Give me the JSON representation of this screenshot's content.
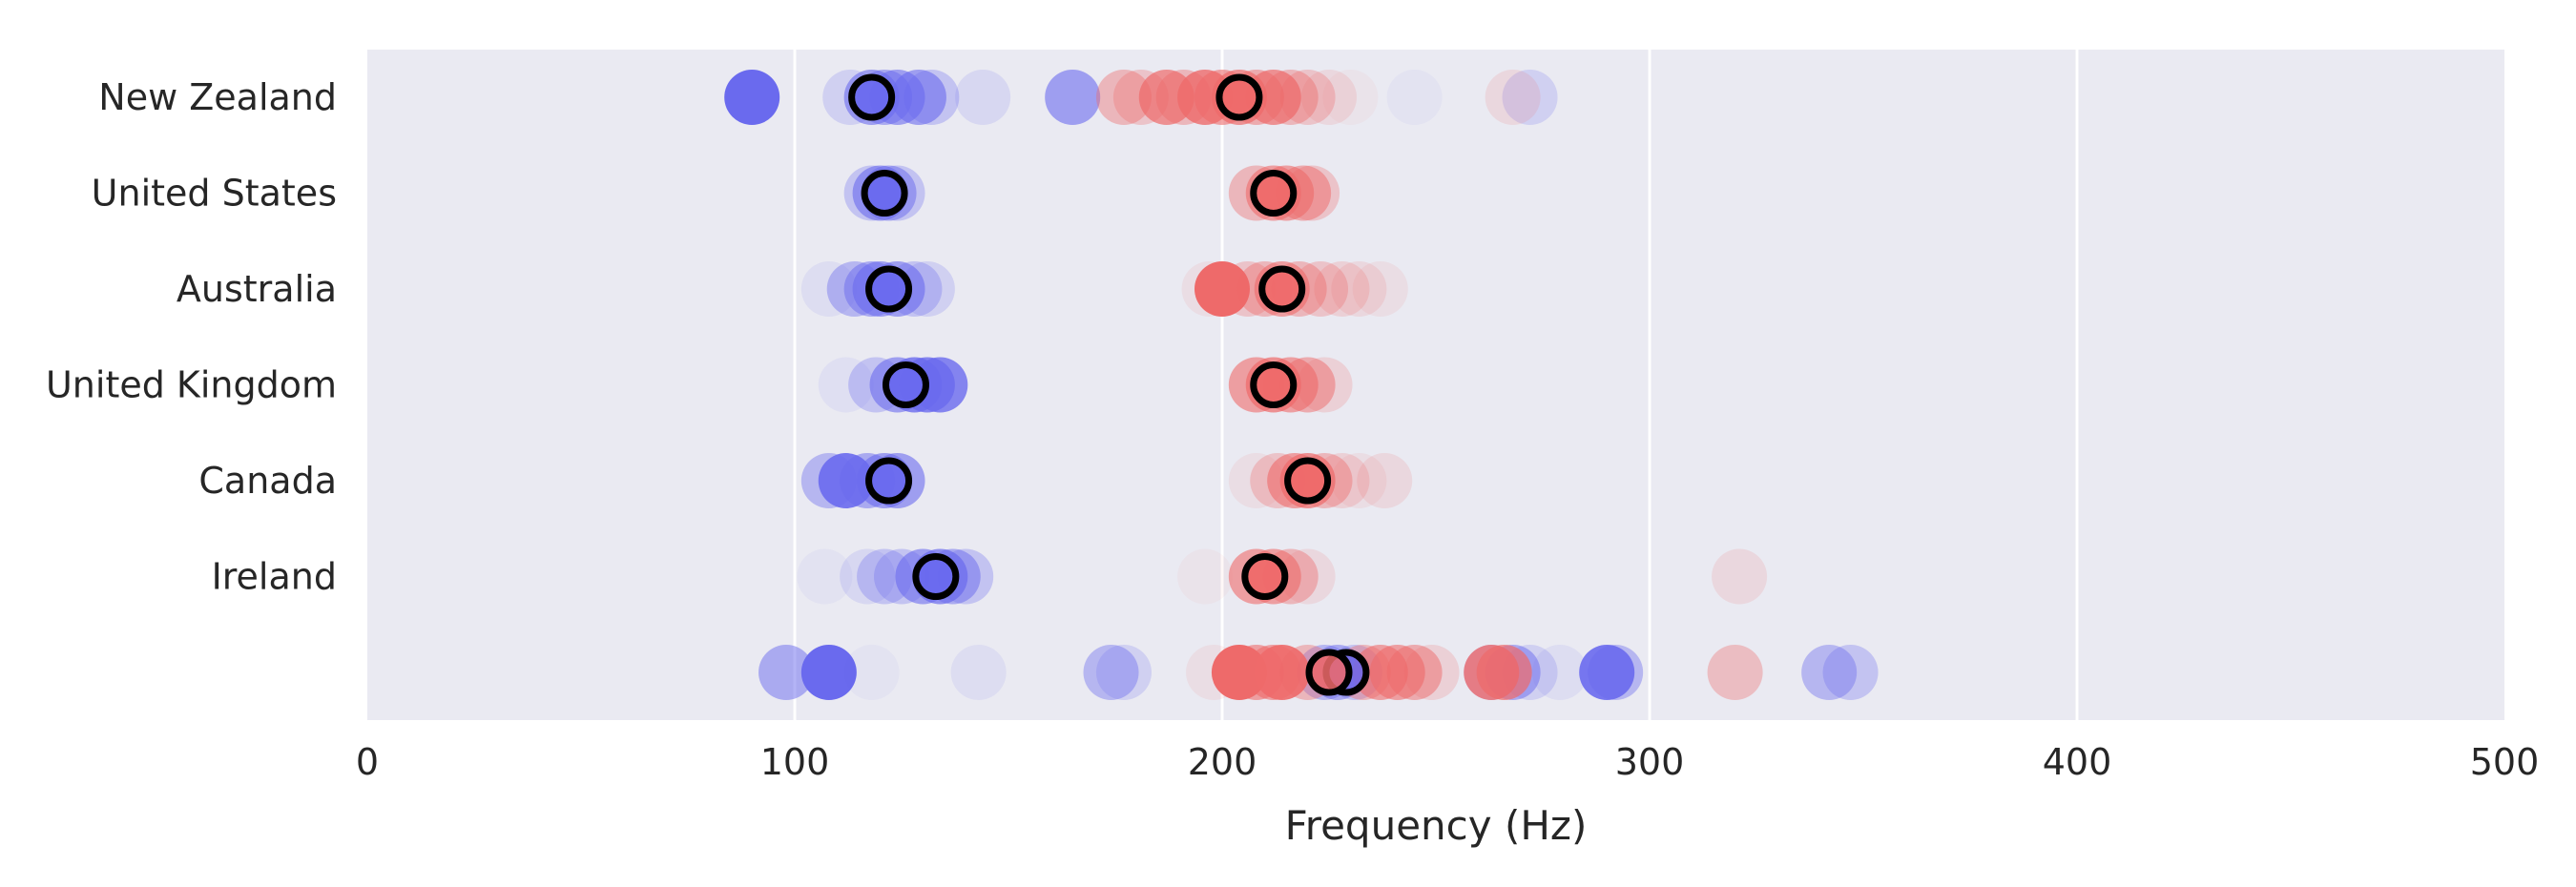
{
  "chart_data": {
    "type": "scatter",
    "title": "",
    "xlabel": "Frequency (Hz)",
    "ylabel": "",
    "xlim": [
      0,
      500
    ],
    "x_ticks": [
      0,
      100,
      200,
      300,
      400,
      500
    ],
    "x_tick_labels": [
      "0",
      "100",
      "200",
      "300",
      "400",
      "500"
    ],
    "categories": [
      "New Zealand",
      "United States",
      "Australia",
      "United Kingdom",
      "Canada",
      "Ireland",
      ""
    ],
    "grid": "vertical",
    "colors": {
      "background": "#eaeaf2",
      "grid": "#ffffff",
      "low_group": "#6a6aee",
      "high_group": "#ee6a6a",
      "mean_marker_edge": "#000000"
    },
    "series": [
      {
        "color": "#6a6aee",
        "rows": [
          {
            "category": "New Zealand",
            "points": [
              [
                90,
                1.0
              ],
              [
                113,
                0.2
              ],
              [
                118,
                0.6
              ],
              [
                121,
                0.5
              ],
              [
                124,
                0.6
              ],
              [
                129,
                0.6
              ],
              [
                132,
                0.3
              ],
              [
                144,
                0.15
              ],
              [
                165,
                0.6
              ],
              [
                245,
                0.05
              ],
              [
                272,
                0.2
              ]
            ],
            "mean": 118
          },
          {
            "category": "United States",
            "points": [
              [
                118,
                0.3
              ],
              [
                120,
                0.6
              ],
              [
                122,
                0.5
              ],
              [
                124,
                0.3
              ]
            ],
            "mean": 121
          },
          {
            "category": "Australia",
            "points": [
              [
                108,
                0.1
              ],
              [
                114,
                0.4
              ],
              [
                118,
                0.5
              ],
              [
                120,
                0.6
              ],
              [
                124,
                0.6
              ],
              [
                128,
                0.3
              ],
              [
                131,
                0.2
              ]
            ],
            "mean": 122
          },
          {
            "category": "United Kingdom",
            "points": [
              [
                112,
                0.08
              ],
              [
                119,
                0.3
              ],
              [
                124,
                0.6
              ],
              [
                128,
                0.8
              ],
              [
                131,
                0.8
              ],
              [
                134,
                0.8
              ]
            ],
            "mean": 126
          },
          {
            "category": "Canada",
            "points": [
              [
                108,
                0.4
              ],
              [
                112,
                0.9
              ],
              [
                117,
                0.5
              ],
              [
                121,
                0.6
              ],
              [
                124,
                0.6
              ]
            ],
            "mean": 122
          },
          {
            "category": "Ireland",
            "points": [
              [
                107,
                0.06
              ],
              [
                117,
                0.15
              ],
              [
                121,
                0.3
              ],
              [
                125,
                0.3
              ],
              [
                130,
                0.6
              ],
              [
                134,
                0.7
              ],
              [
                137,
                0.5
              ],
              [
                140,
                0.3
              ]
            ],
            "mean": 133
          },
          {
            "category": "",
            "points": [
              [
                98,
                0.5
              ],
              [
                108,
                1.0
              ],
              [
                118,
                0.05
              ],
              [
                143,
                0.1
              ],
              [
                174,
                0.4
              ],
              [
                177,
                0.2
              ],
              [
                224,
                0.4
              ],
              [
                227,
                0.5
              ],
              [
                231,
                0.3
              ],
              [
                263,
                0.3
              ],
              [
                268,
                0.5
              ],
              [
                272,
                0.2
              ],
              [
                279,
                0.1
              ],
              [
                290,
                0.9
              ],
              [
                292,
                0.4
              ],
              [
                342,
                0.4
              ],
              [
                347,
                0.3
              ]
            ],
            "mean": 229
          }
        ]
      },
      {
        "color": "#ee6a6a",
        "rows": [
          {
            "category": "New Zealand",
            "points": [
              [
                177,
                0.4
              ],
              [
                181,
                0.3
              ],
              [
                187,
                0.7
              ],
              [
                191,
                0.4
              ],
              [
                196,
                0.8
              ],
              [
                200,
                0.6
              ],
              [
                204,
                0.7
              ],
              [
                208,
                0.5
              ],
              [
                212,
                0.7
              ],
              [
                216,
                0.4
              ],
              [
                220,
                0.3
              ],
              [
                225,
                0.15
              ],
              [
                230,
                0.05
              ],
              [
                268,
                0.15
              ]
            ],
            "mean": 204
          },
          {
            "category": "United States",
            "points": [
              [
                208,
                0.4
              ],
              [
                212,
                0.6
              ],
              [
                215,
                0.6
              ],
              [
                219,
                0.5
              ],
              [
                221,
                0.3
              ]
            ],
            "mean": 212
          },
          {
            "category": "Australia",
            "points": [
              [
                197,
                0.1
              ],
              [
                200,
                1.0
              ],
              [
                206,
                0.3
              ],
              [
                210,
                0.4
              ],
              [
                214,
                0.6
              ],
              [
                218,
                0.4
              ],
              [
                223,
                0.3
              ],
              [
                228,
                0.2
              ],
              [
                232,
                0.15
              ],
              [
                237,
                0.1
              ]
            ],
            "mean": 214
          },
          {
            "category": "United Kingdom",
            "points": [
              [
                208,
                0.6
              ],
              [
                212,
                0.7
              ],
              [
                216,
                0.6
              ],
              [
                220,
                0.5
              ],
              [
                224,
                0.2
              ]
            ],
            "mean": 212
          },
          {
            "category": "Canada",
            "points": [
              [
                208,
                0.1
              ],
              [
                213,
                0.3
              ],
              [
                217,
                0.6
              ],
              [
                220,
                0.7
              ],
              [
                224,
                0.4
              ],
              [
                228,
                0.2
              ],
              [
                232,
                0.1
              ],
              [
                238,
                0.15
              ]
            ],
            "mean": 220
          },
          {
            "category": "Ireland",
            "points": [
              [
                196,
                0.05
              ],
              [
                208,
                0.6
              ],
              [
                212,
                0.6
              ],
              [
                216,
                0.4
              ],
              [
                220,
                0.15
              ],
              [
                321,
                0.15
              ]
            ],
            "mean": 210
          },
          {
            "category": "",
            "points": [
              [
                198,
                0.1
              ],
              [
                204,
                1.0
              ],
              [
                208,
                0.6
              ],
              [
                212,
                0.6
              ],
              [
                214,
                0.9
              ],
              [
                220,
                0.4
              ],
              [
                233,
                0.4
              ],
              [
                237,
                0.6
              ],
              [
                241,
                0.6
              ],
              [
                245,
                0.5
              ],
              [
                249,
                0.2
              ],
              [
                263,
                0.8
              ],
              [
                266,
                0.7
              ],
              [
                320,
                0.35
              ]
            ],
            "mean": 225
          }
        ]
      }
    ]
  }
}
